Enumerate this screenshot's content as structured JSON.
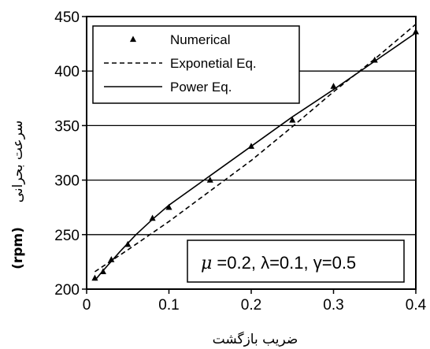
{
  "chart_data": {
    "type": "line",
    "xlabel": "ضریب بازگشت",
    "ylabel_text": "سرعت بحرانی",
    "ylabel_unit": "(rpm)",
    "xlim": [
      0,
      0.4
    ],
    "ylim": [
      200,
      450
    ],
    "xticks": [
      "0",
      "0.1",
      "0.2",
      "0.3",
      "0.4"
    ],
    "yticks": [
      "200",
      "250",
      "300",
      "350",
      "400",
      "450"
    ],
    "grid": "horizontal",
    "legend_position": "top-left",
    "series": [
      {
        "name": "Numerical",
        "style": "markers-triangle",
        "x": [
          0.01,
          0.02,
          0.03,
          0.05,
          0.08,
          0.1,
          0.15,
          0.2,
          0.25,
          0.3,
          0.35,
          0.4
        ],
        "y": [
          210,
          216,
          227,
          241,
          265,
          275,
          300,
          331,
          355,
          386,
          410,
          436
        ]
      },
      {
        "name": "Exponetial Eq.",
        "style": "dashed",
        "x": [
          0.01,
          0.05,
          0.1,
          0.15,
          0.2,
          0.25,
          0.3,
          0.35,
          0.4
        ],
        "y": [
          216,
          236,
          262,
          290,
          318,
          349,
          381,
          411,
          443
        ]
      },
      {
        "name": "Power Eq.",
        "style": "solid",
        "x": [
          0.01,
          0.02,
          0.04,
          0.06,
          0.08,
          0.1,
          0.15,
          0.2,
          0.25,
          0.3,
          0.35,
          0.4
        ],
        "y": [
          208,
          217,
          234,
          250,
          264,
          277,
          304,
          331,
          358,
          383,
          409,
          435
        ]
      }
    ],
    "annotation": {
      "mu_symbol": "μ",
      "text": " =0.2, λ=0.1, γ=0.5"
    }
  }
}
